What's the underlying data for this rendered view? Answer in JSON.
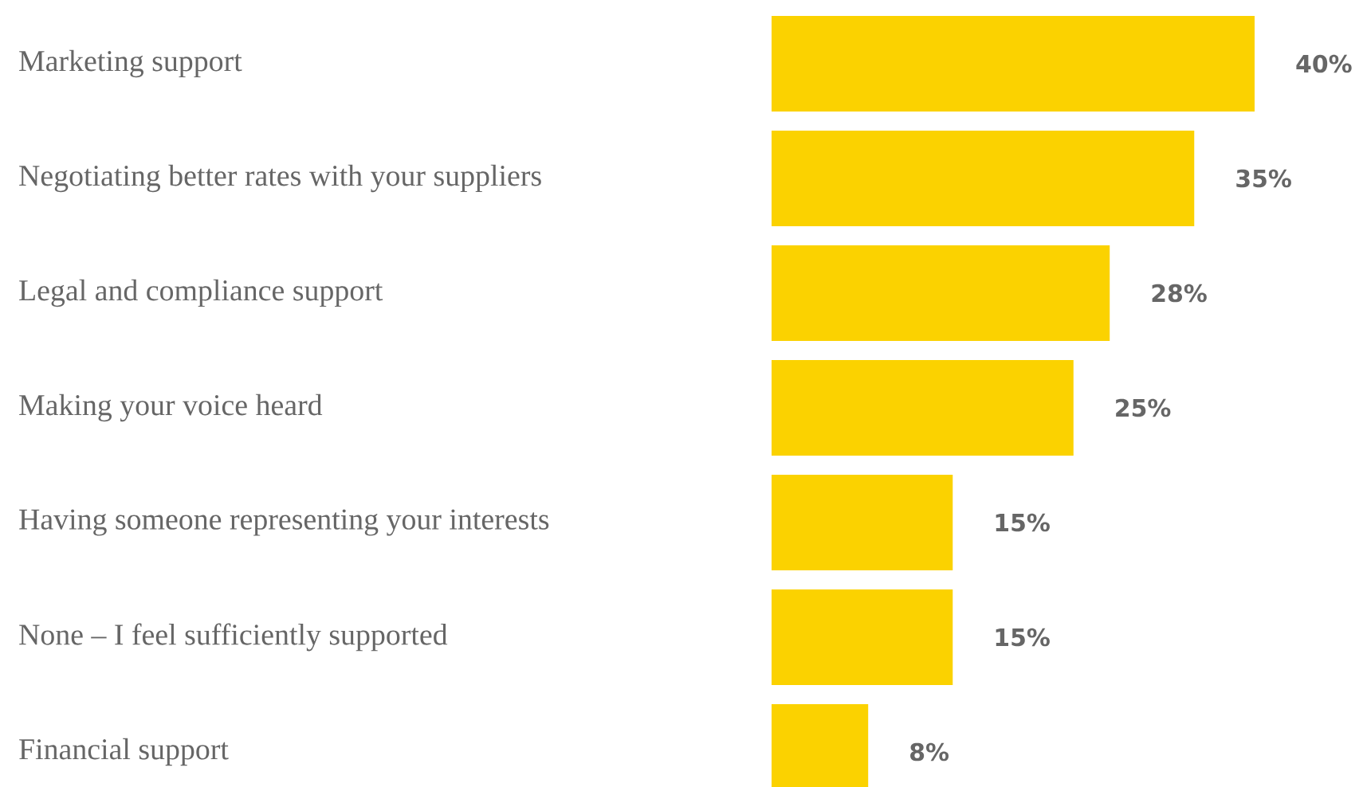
{
  "chart_data": {
    "type": "bar",
    "orientation": "horizontal",
    "categories": [
      "Marketing support",
      "Negotiating better rates with your suppliers",
      "Legal and compliance support",
      "Making your voice heard",
      "Having someone representing your interests",
      "None – I feel sufficiently supported",
      "Financial support"
    ],
    "values": [
      40,
      35,
      28,
      25,
      15,
      15,
      8
    ],
    "value_labels": [
      "40%",
      "35%",
      "28%",
      "25%",
      "15%",
      "15%",
      "8%"
    ],
    "color": "#fbd200"
  }
}
